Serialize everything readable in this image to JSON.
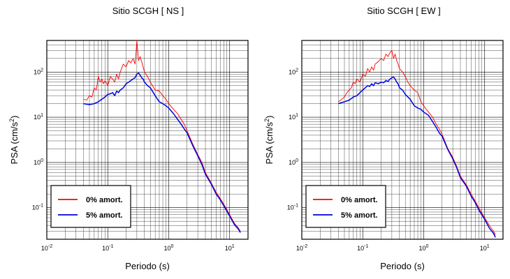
{
  "chart_data": [
    {
      "type": "line",
      "title": "Sitio SCGH [ NS ]",
      "xlabel": "Periodo (s)",
      "ylabel": "PSA (cm/s²)",
      "xscale": "log",
      "yscale": "log",
      "xlim": [
        0.01,
        20
      ],
      "ylim": [
        0.02,
        500
      ],
      "grid": true,
      "legend": "bottom-left",
      "x_ticks": [
        {
          "base": "10",
          "exp": "-2"
        },
        {
          "base": "10",
          "exp": "-1"
        },
        {
          "base": "10",
          "exp": "0"
        },
        {
          "base": "10",
          "exp": "1"
        }
      ],
      "y_ticks": [
        {
          "base": "10",
          "exp": "-1"
        },
        {
          "base": "10",
          "exp": "0"
        },
        {
          "base": "10",
          "exp": "1"
        },
        {
          "base": "10",
          "exp": "2"
        }
      ],
      "series": [
        {
          "name": "0% amort.",
          "color": "#ff0000",
          "x": [
            0.04,
            0.045,
            0.05,
            0.055,
            0.06,
            0.065,
            0.07,
            0.075,
            0.08,
            0.085,
            0.09,
            0.1,
            0.11,
            0.12,
            0.13,
            0.14,
            0.15,
            0.16,
            0.18,
            0.2,
            0.22,
            0.24,
            0.26,
            0.28,
            0.29,
            0.3,
            0.32,
            0.34,
            0.36,
            0.38,
            0.4,
            0.45,
            0.5,
            0.6,
            0.7,
            0.8,
            0.9,
            1.0,
            1.2,
            1.4,
            1.6,
            1.8,
            2.0,
            2.5,
            3.0,
            3.5,
            4.0,
            5.0,
            6.0,
            7.0,
            8.0,
            10.0,
            12.0,
            14.0,
            15.0
          ],
          "y": [
            25,
            24,
            30,
            28,
            45,
            40,
            80,
            60,
            70,
            55,
            65,
            50,
            80,
            70,
            60,
            90,
            70,
            100,
            150,
            130,
            180,
            160,
            200,
            150,
            250,
            500,
            180,
            220,
            170,
            130,
            100,
            80,
            60,
            40,
            38,
            30,
            25,
            20,
            15,
            12,
            9,
            7,
            5,
            2.5,
            1.5,
            1.0,
            0.6,
            0.35,
            0.22,
            0.16,
            0.12,
            0.07,
            0.045,
            0.035,
            0.03
          ]
        },
        {
          "name": "5% amort.",
          "color": "#0000dd",
          "x": [
            0.04,
            0.05,
            0.06,
            0.07,
            0.08,
            0.09,
            0.1,
            0.11,
            0.12,
            0.13,
            0.14,
            0.15,
            0.16,
            0.18,
            0.2,
            0.22,
            0.24,
            0.26,
            0.28,
            0.3,
            0.32,
            0.34,
            0.36,
            0.38,
            0.4,
            0.45,
            0.5,
            0.6,
            0.7,
            0.8,
            0.9,
            1.0,
            1.2,
            1.4,
            1.6,
            1.8,
            2.0,
            2.5,
            3.0,
            3.5,
            4.0,
            5.0,
            6.0,
            7.0,
            8.0,
            10.0,
            12.0,
            14.0,
            15.0
          ],
          "y": [
            20,
            19,
            20,
            22,
            25,
            28,
            32,
            33,
            35,
            30,
            38,
            35,
            40,
            45,
            55,
            60,
            65,
            70,
            75,
            90,
            95,
            85,
            75,
            70,
            60,
            50,
            45,
            30,
            22,
            20,
            18,
            16,
            12,
            9,
            7,
            5.5,
            4.5,
            2.3,
            1.4,
            0.9,
            0.55,
            0.33,
            0.2,
            0.15,
            0.11,
            0.065,
            0.042,
            0.033,
            0.028
          ]
        }
      ]
    },
    {
      "type": "line",
      "title": "Sitio SCGH [ EW ]",
      "xlabel": "Periodo (s)",
      "ylabel": "PSA (cm/s²)",
      "xscale": "log",
      "yscale": "log",
      "xlim": [
        0.01,
        20
      ],
      "ylim": [
        0.02,
        500
      ],
      "grid": true,
      "legend": "bottom-left",
      "x_ticks": [
        {
          "base": "10",
          "exp": "-2"
        },
        {
          "base": "10",
          "exp": "-1"
        },
        {
          "base": "10",
          "exp": "0"
        },
        {
          "base": "10",
          "exp": "1"
        }
      ],
      "y_ticks": [
        {
          "base": "10",
          "exp": "-1"
        },
        {
          "base": "10",
          "exp": "0"
        },
        {
          "base": "10",
          "exp": "1"
        },
        {
          "base": "10",
          "exp": "2"
        }
      ],
      "series": [
        {
          "name": "0% amort.",
          "color": "#ff0000",
          "x": [
            0.04,
            0.045,
            0.05,
            0.055,
            0.06,
            0.065,
            0.07,
            0.075,
            0.08,
            0.09,
            0.1,
            0.11,
            0.12,
            0.13,
            0.14,
            0.15,
            0.16,
            0.18,
            0.2,
            0.22,
            0.24,
            0.26,
            0.28,
            0.3,
            0.32,
            0.34,
            0.36,
            0.38,
            0.4,
            0.45,
            0.5,
            0.55,
            0.6,
            0.7,
            0.8,
            0.9,
            1.0,
            1.1,
            1.2,
            1.4,
            1.6,
            1.8,
            2.0,
            2.5,
            3.0,
            3.5,
            4.0,
            5.0,
            6.0,
            7.0,
            8.0,
            10.0,
            12.0,
            14.0,
            15.0
          ],
          "y": [
            22,
            25,
            28,
            35,
            40,
            45,
            60,
            55,
            70,
            60,
            90,
            80,
            120,
            100,
            130,
            110,
            150,
            170,
            200,
            180,
            250,
            220,
            270,
            300,
            200,
            250,
            180,
            150,
            120,
            100,
            80,
            60,
            50,
            40,
            35,
            22,
            18,
            15,
            13,
            10,
            7,
            5.5,
            4.2,
            2.0,
            1.3,
            0.8,
            0.5,
            0.32,
            0.2,
            0.14,
            0.1,
            0.06,
            0.04,
            0.03,
            0.025
          ]
        },
        {
          "name": "5% amort.",
          "color": "#0000dd",
          "x": [
            0.04,
            0.05,
            0.06,
            0.07,
            0.08,
            0.09,
            0.1,
            0.11,
            0.12,
            0.13,
            0.14,
            0.15,
            0.16,
            0.18,
            0.2,
            0.22,
            0.24,
            0.26,
            0.28,
            0.3,
            0.32,
            0.34,
            0.36,
            0.38,
            0.4,
            0.45,
            0.5,
            0.6,
            0.7,
            0.8,
            0.9,
            1.0,
            1.2,
            1.4,
            1.6,
            1.8,
            2.0,
            2.5,
            3.0,
            3.5,
            4.0,
            5.0,
            6.0,
            7.0,
            8.0,
            10.0,
            12.0,
            14.0,
            15.0
          ],
          "y": [
            20,
            22,
            24,
            28,
            30,
            35,
            40,
            45,
            50,
            48,
            55,
            50,
            58,
            55,
            60,
            58,
            65,
            62,
            70,
            75,
            78,
            70,
            60,
            55,
            45,
            40,
            32,
            25,
            18,
            16,
            15,
            13,
            11,
            8,
            6,
            4.5,
            3.8,
            1.9,
            1.2,
            0.75,
            0.46,
            0.3,
            0.18,
            0.13,
            0.09,
            0.055,
            0.035,
            0.027,
            0.022
          ]
        }
      ]
    }
  ]
}
